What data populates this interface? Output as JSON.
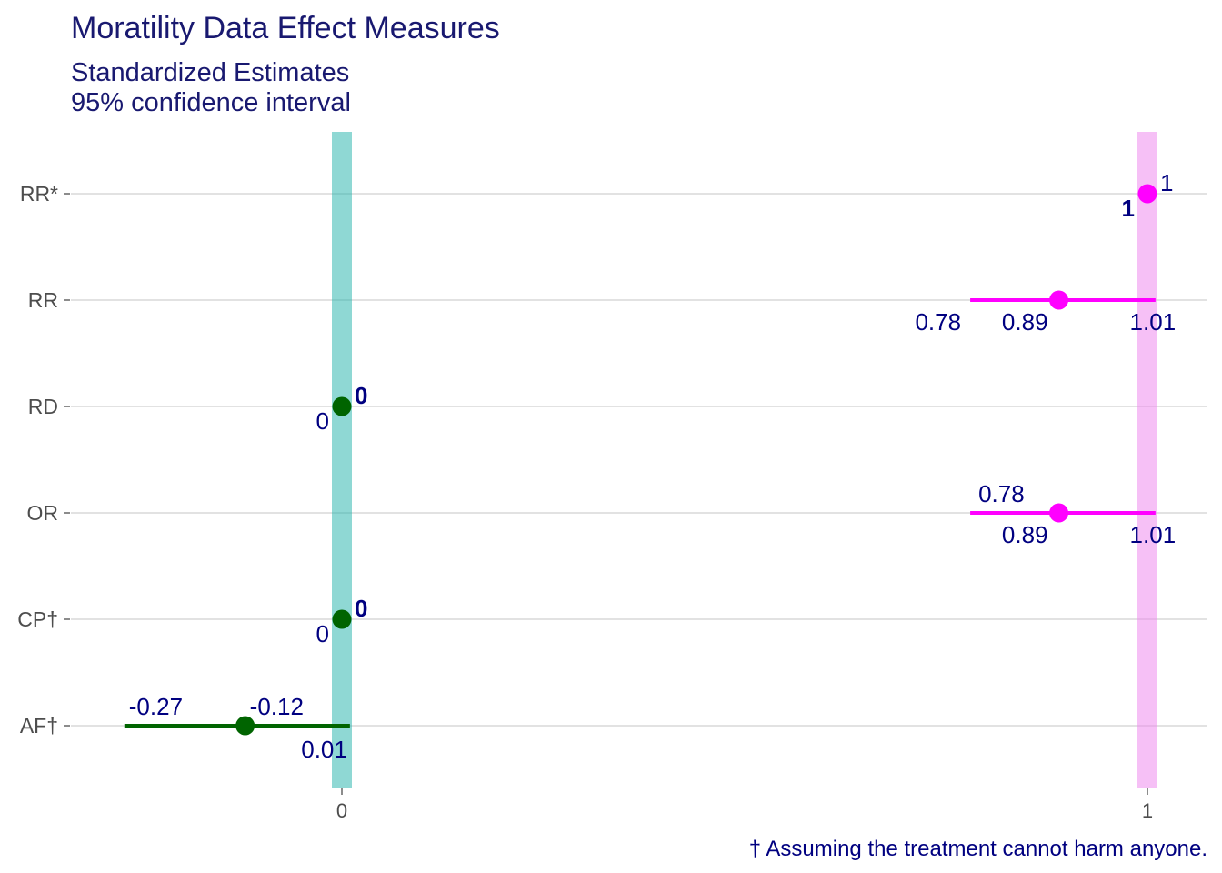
{
  "chart_data": {
    "type": "scatter",
    "title": "Moratility Data Effect Measures",
    "subtitle_lines": [
      "Standardized Estimates",
      "95% confidence interval"
    ],
    "caption": "† Assuming the treatment cannot harm anyone.",
    "xlabel": "",
    "ylabel": "",
    "x_ticks": [
      "0",
      "1"
    ],
    "xlim": [
      -0.34,
      1.08
    ],
    "grid": "horizontal",
    "legend": "none",
    "reference_lines": [
      {
        "x": 0,
        "color": "#20b2aa"
      },
      {
        "x": 1,
        "color": "#ee82ee"
      }
    ],
    "categories": [
      "RR*",
      "RR",
      "RD",
      "OR",
      "CP†",
      "AF†"
    ],
    "rows": [
      {
        "label": "RR*",
        "estimate": 1,
        "lower": 1,
        "upper": 1,
        "color": "#ff00ff",
        "labels": [
          {
            "text": "1",
            "pos": "est"
          },
          {
            "text": "1",
            "pos": "lo",
            "bold": true
          }
        ]
      },
      {
        "label": "RR",
        "estimate": 0.89,
        "lower": 0.78,
        "upper": 1.01,
        "color": "#ff00ff",
        "labels": [
          {
            "text": "0.78",
            "pos": "lo"
          },
          {
            "text": "0.89",
            "pos": "est"
          },
          {
            "text": "1.01",
            "pos": "up"
          }
        ]
      },
      {
        "label": "RD",
        "estimate": 0,
        "lower": 0,
        "upper": 0,
        "color": "#006400",
        "labels": [
          {
            "text": "0",
            "pos": "lo"
          },
          {
            "text": "0",
            "pos": "est",
            "bold": true
          }
        ]
      },
      {
        "label": "OR",
        "estimate": 0.89,
        "lower": 0.78,
        "upper": 1.01,
        "color": "#ff00ff",
        "labels": [
          {
            "text": "0.78",
            "pos": "lo"
          },
          {
            "text": "0.89",
            "pos": "est"
          },
          {
            "text": "1.01",
            "pos": "up"
          }
        ]
      },
      {
        "label": "CP†",
        "estimate": 0,
        "lower": 0,
        "upper": 0,
        "color": "#006400",
        "labels": [
          {
            "text": "0",
            "pos": "lo"
          },
          {
            "text": "0",
            "pos": "est",
            "bold": true
          }
        ]
      },
      {
        "label": "AF†",
        "estimate": -0.12,
        "lower": -0.27,
        "upper": 0.01,
        "color": "#006400",
        "labels": [
          {
            "text": "-0.27",
            "pos": "lo"
          },
          {
            "text": "-0.12",
            "pos": "est"
          },
          {
            "text": "0.01",
            "pos": "up"
          }
        ]
      }
    ]
  }
}
